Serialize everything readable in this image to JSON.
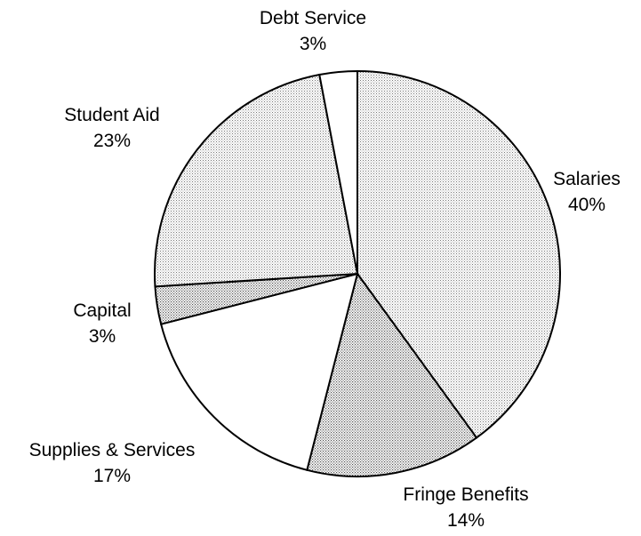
{
  "chart_data": {
    "type": "pie",
    "start": "top",
    "direction": "clockwise",
    "slices": [
      {
        "label": "Salaries",
        "value": 40,
        "value_label": "40%",
        "fill": "dots-dense"
      },
      {
        "label": "Fringe Benefits",
        "value": 14,
        "value_label": "14%",
        "fill": "dots"
      },
      {
        "label": "Supplies & Services",
        "value": 17,
        "value_label": "17%",
        "fill": "white"
      },
      {
        "label": "Capital",
        "value": 3,
        "value_label": "3%",
        "fill": "dots"
      },
      {
        "label": "Student Aid",
        "value": 23,
        "value_label": "23%",
        "fill": "dots-dense"
      },
      {
        "label": "Debt Service",
        "value": 3,
        "value_label": "3%",
        "fill": "white"
      }
    ],
    "colors": {
      "stroke": "#000000",
      "background": "#ffffff",
      "dot": "#000000"
    }
  }
}
